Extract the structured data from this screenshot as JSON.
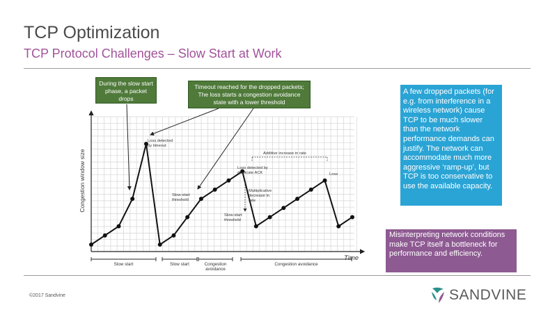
{
  "slide": {
    "title": "TCP Optimization",
    "subtitle": "TCP Protocol Challenges – Slow Start at Work",
    "footer": "©2017 Sandvine",
    "logo_text": "SANDVINE"
  },
  "callouts": {
    "slow_start_drop": "During the slow start phase, a packet drops",
    "timeout": "Timeout reached for the dropped packets; The loss starts a congestion avoidance state with a lower threshold"
  },
  "info_blue": "A few dropped packets (for e.g. from interference in a wireless network) cause TCP to be much slower than the network performance demands can justify. The network can accommodate much more aggressive ‘ramp-up’, but TCP is too conservative to use the available capacity.",
  "info_purple": "Misinterpreting network conditions make TCP itself a bottleneck for performance and efficiency.",
  "colors": {
    "title": "#4a4a4a",
    "subtitle": "#a2529a",
    "callout_green": "#4f7a3a",
    "info_blue": "#2aa4d5",
    "info_purple": "#8e5a92",
    "logo_icon": "#2a8f8a"
  },
  "chart_data": {
    "type": "line",
    "ylabel": "Congestion window size",
    "xlabel": "Time",
    "grid": true,
    "x": [
      1,
      2,
      3,
      4,
      5,
      6,
      7,
      8,
      9,
      10,
      11,
      12,
      13,
      14,
      15,
      16,
      17,
      18,
      19,
      20
    ],
    "series": [
      {
        "values": [
          1,
          2,
          3,
          6,
          12,
          1,
          2,
          4,
          6,
          7,
          8,
          9,
          3,
          4,
          5,
          6,
          7,
          8,
          3,
          4
        ]
      }
    ],
    "annotations": {
      "loss_timeout": "Loss detected by timeout",
      "slow_start_threshold_1": "Slow-start threshold",
      "slow_start_threshold_2": "Slow-start threshold",
      "additive_increase": "Additive increase in rate",
      "loss_dup_ack": "Loss detected by duplicate ACK",
      "mult_decrease": "Multiplicative decrease in rate",
      "loss": "Loss"
    },
    "phases": [
      "Slow start",
      "Slow start",
      "Congestion avoidance",
      "Congestion avoidance"
    ]
  }
}
